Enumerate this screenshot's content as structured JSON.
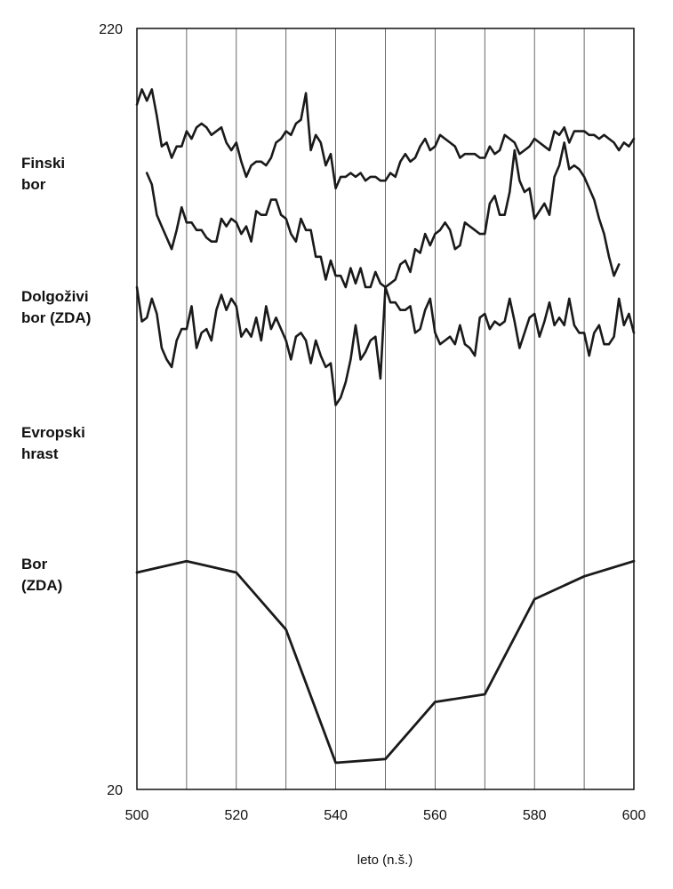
{
  "chart_data": {
    "type": "line",
    "xlabel": "leto (n.š.)",
    "ylabel": "",
    "xlim": [
      500,
      600
    ],
    "ylim": [
      20,
      220
    ],
    "x_ticks": [
      "500",
      "520",
      "540",
      "560",
      "580",
      "600"
    ],
    "y_ticks": [
      "20",
      "220"
    ],
    "vertical_grid_every": 10,
    "grid": true,
    "legend": "left labels",
    "series": [
      {
        "name": "Finski bor",
        "label_lines": [
          "Finski",
          "bor"
        ],
        "x": [
          500,
          501,
          502,
          503,
          504,
          505,
          506,
          507,
          508,
          509,
          510,
          511,
          512,
          513,
          514,
          515,
          516,
          517,
          518,
          519,
          520,
          521,
          522,
          523,
          524,
          525,
          526,
          527,
          528,
          529,
          530,
          531,
          532,
          533,
          534,
          535,
          536,
          537,
          538,
          539,
          540,
          541,
          542,
          543,
          544,
          545,
          546,
          547,
          548,
          549,
          550,
          551,
          552,
          553,
          554,
          555,
          556,
          557,
          558,
          559,
          560,
          561,
          562,
          563,
          564,
          565,
          566,
          567,
          568,
          569,
          570,
          571,
          572,
          573,
          574,
          575,
          576,
          577,
          578,
          579,
          580,
          581,
          582,
          583,
          584,
          585,
          586,
          587,
          588,
          589,
          590,
          591,
          592,
          593,
          594,
          595,
          596,
          597,
          598,
          599,
          600
        ],
        "y": [
          200,
          204,
          201,
          204,
          197,
          189,
          190,
          186,
          189,
          189,
          193,
          191,
          194,
          195,
          194,
          192,
          193,
          194,
          190,
          188,
          190,
          185,
          181,
          184,
          185,
          185,
          184,
          186,
          190,
          191,
          193,
          192,
          195,
          196,
          203,
          188,
          192,
          190,
          184,
          187,
          178,
          181,
          181,
          182,
          181,
          182,
          180,
          181,
          181,
          180,
          180,
          182,
          181,
          185,
          187,
          185,
          186,
          189,
          191,
          188,
          189,
          192,
          191,
          190,
          189,
          186,
          187,
          187,
          187,
          186,
          186,
          189,
          187,
          188,
          192,
          191,
          190,
          187,
          188,
          189,
          191,
          190,
          189,
          188,
          193,
          192,
          194,
          190,
          193,
          193,
          193,
          192,
          192,
          191,
          192,
          191,
          190,
          188,
          190,
          189,
          191
        ]
      },
      {
        "name": "Dolgoživi bor (ZDA)",
        "label_lines": [
          "Dolgoživi",
          "bor (ZDA)"
        ],
        "x": [
          502,
          503,
          504,
          505,
          506,
          507,
          508,
          509,
          510,
          511,
          512,
          513,
          514,
          515,
          516,
          517,
          518,
          519,
          520,
          521,
          522,
          523,
          524,
          525,
          526,
          527,
          528,
          529,
          530,
          531,
          532,
          533,
          534,
          535,
          536,
          537,
          538,
          539,
          540,
          541,
          542,
          543,
          544,
          545,
          546,
          547,
          548,
          549,
          550,
          551,
          552,
          553,
          554,
          555,
          556,
          557,
          558,
          559,
          560,
          561,
          562,
          563,
          564,
          565,
          566,
          567,
          568,
          569,
          570,
          571,
          572,
          573,
          574,
          575,
          576,
          577,
          578,
          579,
          580,
          581,
          582,
          583,
          584,
          585,
          586,
          587,
          588,
          589,
          590,
          591,
          592,
          593,
          594,
          595,
          596,
          597
        ],
        "y": [
          182,
          179,
          171,
          168,
          165,
          162,
          167,
          173,
          169,
          169,
          167,
          167,
          165,
          164,
          164,
          170,
          168,
          170,
          169,
          166,
          168,
          164,
          172,
          171,
          171,
          175,
          175,
          171,
          170,
          166,
          164,
          170,
          167,
          167,
          160,
          160,
          154,
          159,
          155,
          155,
          152,
          157,
          153,
          157,
          152,
          152,
          156,
          153,
          152,
          153,
          154,
          158,
          159,
          156,
          162,
          161,
          166,
          163,
          166,
          167,
          169,
          167,
          162,
          163,
          169,
          168,
          167,
          166,
          166,
          174,
          176,
          171,
          171,
          177,
          188,
          180,
          177,
          178,
          170,
          172,
          174,
          171,
          181,
          184,
          190,
          183,
          184,
          183,
          181,
          178,
          175,
          170,
          166,
          160,
          155,
          158
        ]
      },
      {
        "name": "Evropski hrast",
        "label_lines": [
          "Evropski",
          "hrast"
        ],
        "x": [
          500,
          501,
          502,
          503,
          504,
          505,
          506,
          507,
          508,
          509,
          510,
          511,
          512,
          513,
          514,
          515,
          516,
          517,
          518,
          519,
          520,
          521,
          522,
          523,
          524,
          525,
          526,
          527,
          528,
          529,
          530,
          531,
          532,
          533,
          534,
          535,
          536,
          537,
          538,
          539,
          540,
          541,
          542,
          543,
          544,
          545,
          546,
          547,
          548,
          549,
          550,
          551,
          552,
          553,
          554,
          555,
          556,
          557,
          558,
          559,
          560,
          561,
          562,
          563,
          564,
          565,
          566,
          567,
          568,
          569,
          570,
          571,
          572,
          573,
          574,
          575,
          576,
          577,
          578,
          579,
          580,
          581,
          582,
          583,
          584,
          585,
          586,
          587,
          588,
          589,
          590,
          591,
          592,
          593,
          594,
          595,
          596,
          597,
          598,
          599,
          600
        ],
        "y": [
          152,
          143,
          144,
          149,
          145,
          136,
          133,
          131,
          138,
          141,
          141,
          147,
          136,
          140,
          141,
          138,
          146,
          150,
          146,
          149,
          147,
          139,
          141,
          139,
          144,
          138,
          147,
          141,
          144,
          141,
          138,
          133,
          139,
          140,
          138,
          132,
          138,
          134,
          131,
          132,
          121,
          123,
          127,
          133,
          142,
          133,
          135,
          138,
          139,
          128,
          152,
          148,
          148,
          146,
          146,
          147,
          140,
          141,
          146,
          149,
          140,
          137,
          138,
          139,
          137,
          142,
          137,
          136,
          134,
          144,
          145,
          141,
          143,
          142,
          143,
          149,
          143,
          136,
          140,
          144,
          145,
          139,
          143,
          148,
          142,
          144,
          142,
          149,
          142,
          140,
          140,
          134,
          140,
          142,
          137,
          137,
          139,
          149,
          142,
          145,
          140
        ]
      },
      {
        "name": "Bor (ZDA)",
        "label_lines": [
          "Bor",
          "(ZDA)"
        ],
        "x": [
          500,
          510,
          520,
          530,
          540,
          550,
          560,
          570,
          580,
          590,
          600
        ],
        "y": [
          77,
          80,
          77,
          62,
          27,
          28,
          43,
          45,
          70,
          76,
          80
        ]
      }
    ]
  }
}
